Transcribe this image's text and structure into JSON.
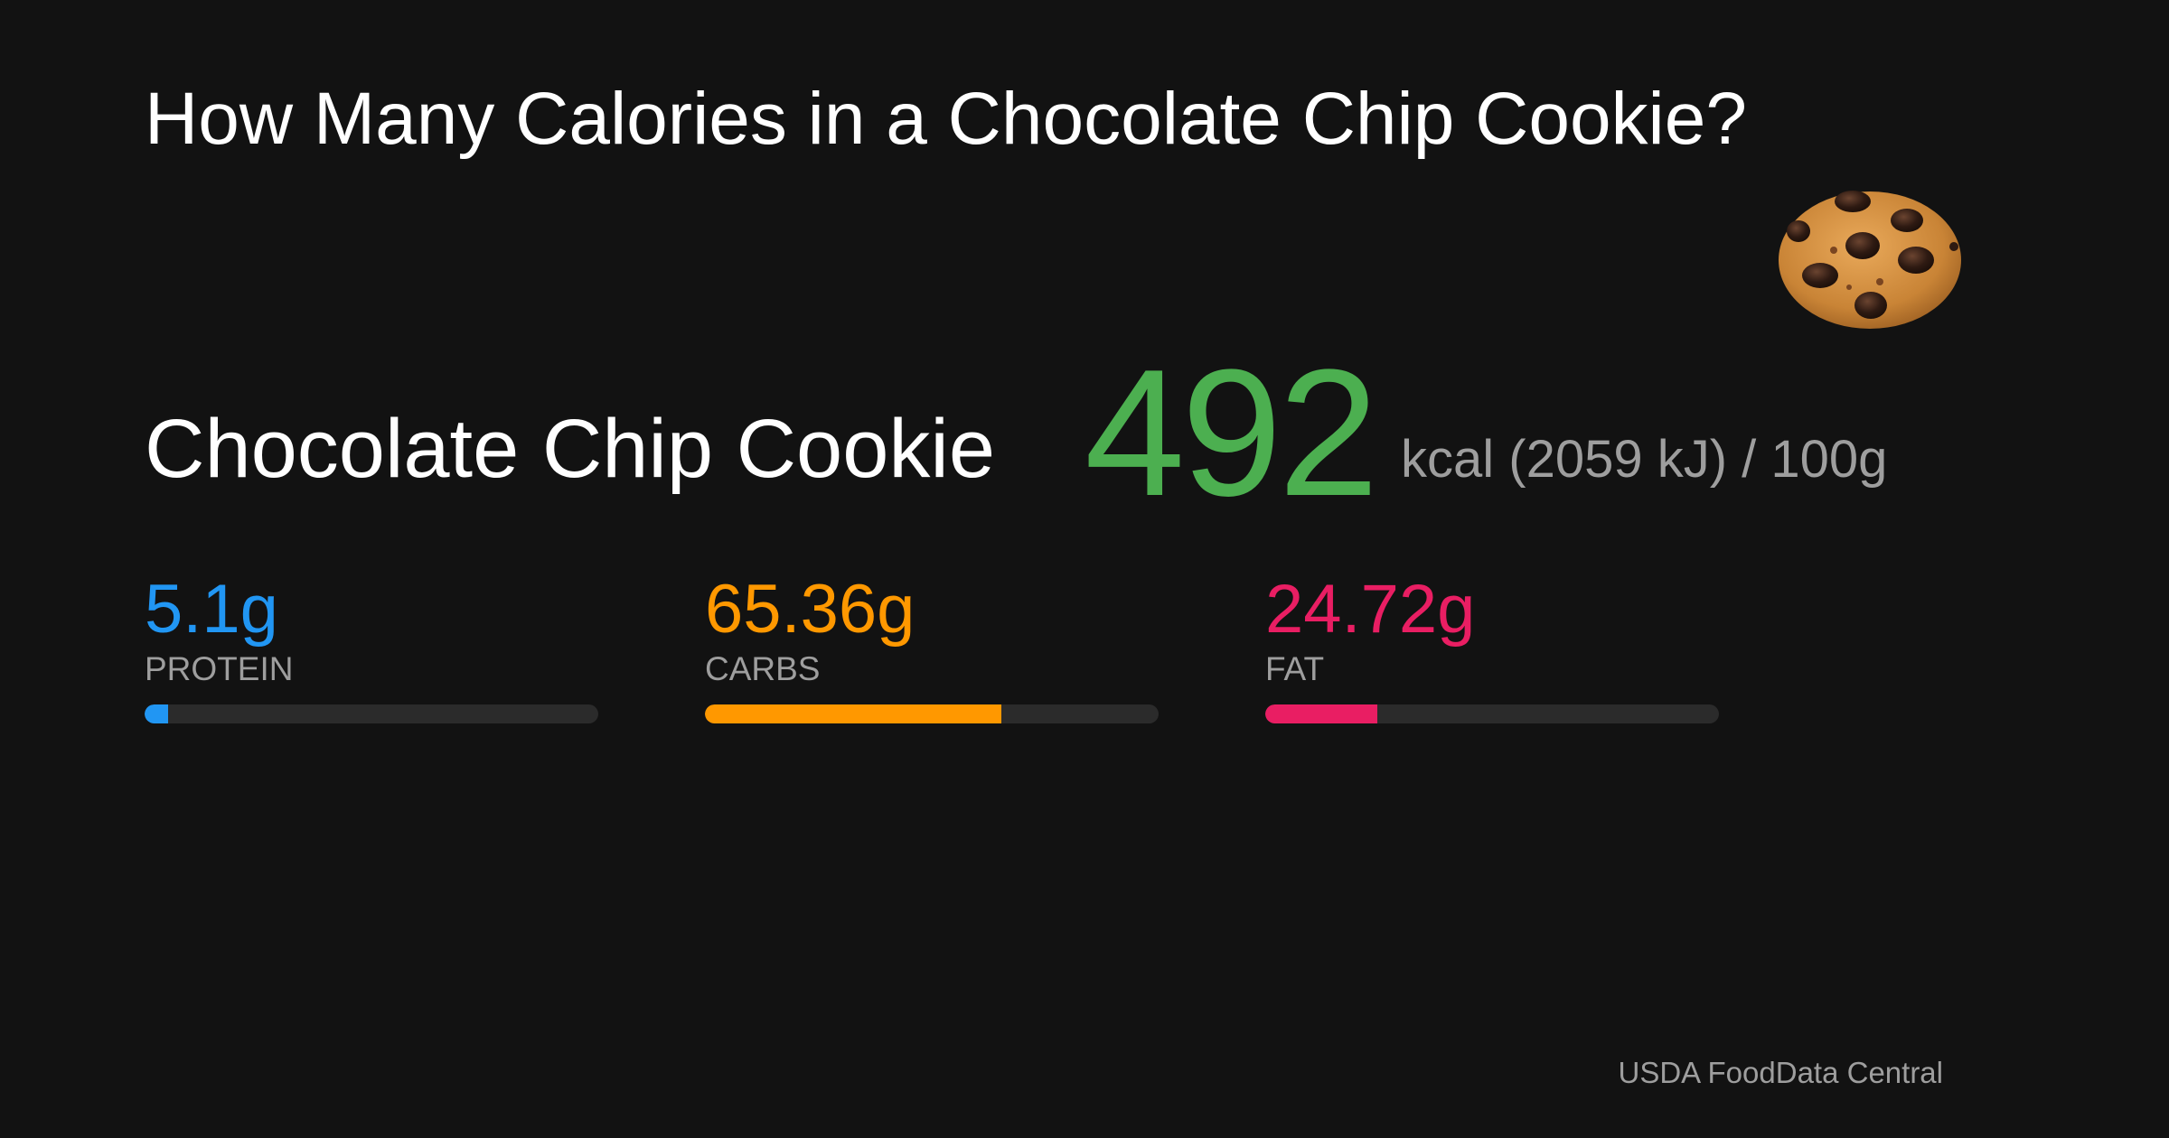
{
  "page": {
    "title": "How Many Calories in a Chocolate Chip Cookie?",
    "icon": "cookie-icon"
  },
  "food": {
    "name": "Chocolate Chip Cookie",
    "kcal": "492",
    "unit_text": "kcal (2059 kJ) / 100g"
  },
  "macros": [
    {
      "value": "5.1g",
      "label": "PROTEIN",
      "fraction": 0.051,
      "color": "#2196f3"
    },
    {
      "value": "65.36g",
      "label": "CARBS",
      "fraction": 0.6536,
      "color": "#ff9800"
    },
    {
      "value": "24.72g",
      "label": "FAT",
      "fraction": 0.2472,
      "color": "#e91e63"
    }
  ],
  "colors": {
    "background": "#121212",
    "kcal": "#4caf50",
    "muted_text": "#9e9e9e",
    "track": "#2b2b2b"
  },
  "source": "USDA FoodData Central"
}
